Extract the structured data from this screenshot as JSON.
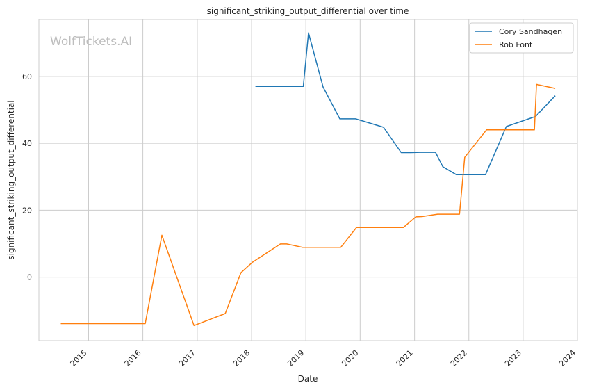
{
  "chart_data": {
    "type": "line",
    "title": "significant_striking_output_differential over time",
    "xlabel": "Date",
    "ylabel": "significant_striking_output_differential",
    "xlim": [
      "2014-02-01",
      "2024-01-01"
    ],
    "ylim": [
      -19,
      77
    ],
    "x_ticks": [
      "2015",
      "2016",
      "2017",
      "2018",
      "2019",
      "2020",
      "2021",
      "2022",
      "2023",
      "2024"
    ],
    "y_ticks": [
      0,
      20,
      40,
      60
    ],
    "grid": true,
    "legend": "top-right",
    "watermark": "WolfTickets.AI",
    "series": [
      {
        "name": "Cory Sandhagen",
        "color": "#1f77b4",
        "points": [
          [
            "2018-01-27",
            57.0
          ],
          [
            "2018-12-15",
            57.0
          ],
          [
            "2019-01-19",
            73.0
          ],
          [
            "2019-04-27",
            56.8
          ],
          [
            "2019-08-17",
            47.3
          ],
          [
            "2019-12-01",
            47.3
          ],
          [
            "2020-06-06",
            44.8
          ],
          [
            "2020-10-03",
            37.2
          ],
          [
            "2020-12-05",
            37.2
          ],
          [
            "2021-02-06",
            37.3
          ],
          [
            "2021-05-22",
            37.3
          ],
          [
            "2021-07-10",
            33.0
          ],
          [
            "2021-10-09",
            30.6
          ],
          [
            "2022-04-23",
            30.6
          ],
          [
            "2022-09-10",
            45.0
          ],
          [
            "2023-03-25",
            48.0
          ],
          [
            "2023-08-05",
            54.2
          ]
        ]
      },
      {
        "name": "Rob Font",
        "color": "#ff7f0e",
        "points": [
          [
            "2014-06-28",
            -13.9
          ],
          [
            "2016-01-17",
            -13.9
          ],
          [
            "2016-05-08",
            12.5
          ],
          [
            "2016-12-10",
            -14.5
          ],
          [
            "2017-07-08",
            -10.9
          ],
          [
            "2017-10-21",
            1.3
          ],
          [
            "2018-01-06",
            4.4
          ],
          [
            "2018-07-14",
            9.9
          ],
          [
            "2018-08-25",
            9.9
          ],
          [
            "2018-12-08",
            8.9
          ],
          [
            "2019-08-24",
            8.9
          ],
          [
            "2019-12-07",
            14.8
          ],
          [
            "2020-10-17",
            14.8
          ],
          [
            "2021-01-09",
            18.0
          ],
          [
            "2021-02-20",
            18.1
          ],
          [
            "2021-06-05",
            18.8
          ],
          [
            "2021-10-30",
            18.8
          ],
          [
            "2021-12-04",
            35.8
          ],
          [
            "2022-04-30",
            44.0
          ],
          [
            "2023-03-18",
            44.0
          ],
          [
            "2023-04-01",
            57.6
          ],
          [
            "2023-08-05",
            56.4
          ]
        ]
      }
    ]
  }
}
